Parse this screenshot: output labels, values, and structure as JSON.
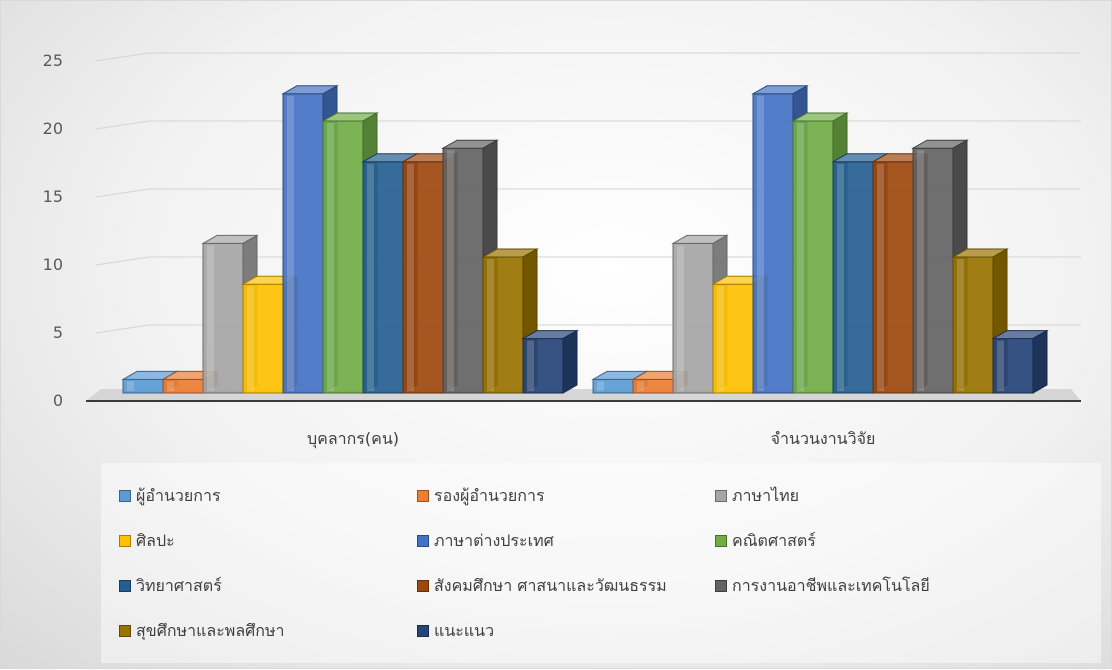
{
  "chart_data": {
    "type": "bar",
    "style": "3d-clustered-column",
    "categories": [
      "บุคลากร(คน)",
      "จำนวนงานวิจัย"
    ],
    "ylim": [
      0,
      25
    ],
    "yticks": [
      0,
      5,
      10,
      15,
      20,
      25
    ],
    "grid": true,
    "legend_position": "bottom",
    "series": [
      {
        "name": "ผู้อำนวยการ",
        "color": "#5B9BD5",
        "values": [
          1,
          1
        ]
      },
      {
        "name": "รองผู้อำนวยการ",
        "color": "#ED7D31",
        "values": [
          1,
          1
        ]
      },
      {
        "name": "ภาษาไทย",
        "color": "#A5A5A5",
        "values": [
          11,
          11
        ]
      },
      {
        "name": "ศิลปะ",
        "color": "#FFC000",
        "values": [
          8,
          8
        ]
      },
      {
        "name": "ภาษาต่างประเทศ",
        "color": "#4472C4",
        "values": [
          22,
          22
        ]
      },
      {
        "name": "คณิตศาสตร์",
        "color": "#70AD47",
        "values": [
          20,
          20
        ]
      },
      {
        "name": "วิทยาศาสตร์",
        "color": "#255E91",
        "values": [
          17,
          17
        ]
      },
      {
        "name": "สังคมศึกษา ศาสนาและวัฒนธรรม",
        "color": "#9E480E",
        "values": [
          17,
          17
        ]
      },
      {
        "name": "การงานอาชีพและเทคโนโลยี",
        "color": "#636363",
        "values": [
          18,
          18
        ]
      },
      {
        "name": "สุขศึกษาและพลศึกษา",
        "color": "#997300",
        "values": [
          10,
          10
        ]
      },
      {
        "name": "แนะแนว",
        "color": "#264478",
        "values": [
          4,
          4
        ]
      }
    ]
  }
}
